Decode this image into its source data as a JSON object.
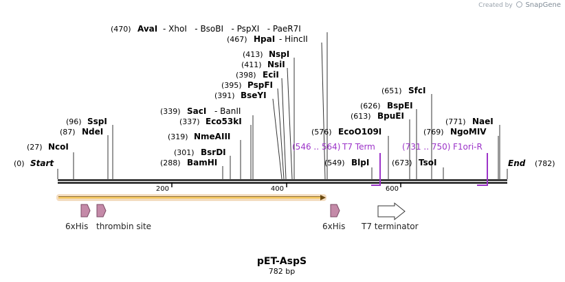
{
  "credit": {
    "prefix": "Created by",
    "brand": "SnapGene"
  },
  "map": {
    "name": "pET-AspS",
    "length_label": "782 bp",
    "length_bp": 782,
    "ticks": [
      "200",
      "400",
      "600"
    ],
    "ends": {
      "start": {
        "pos": "(0)",
        "label": "Start"
      },
      "end": {
        "pos": "(782)",
        "label": "End"
      }
    }
  },
  "sites": [
    {
      "pos": "(27)",
      "name": "NcoI"
    },
    {
      "pos": "(87)",
      "name": "NdeI"
    },
    {
      "pos": "(96)",
      "name": "SspI"
    },
    {
      "pos": "(288)",
      "name": "BamHI"
    },
    {
      "pos": "(301)",
      "name": "BsrDI"
    },
    {
      "pos": "(319)",
      "name": "NmeAIII"
    },
    {
      "pos": "(337)",
      "name": "Eco53kI"
    },
    {
      "pos": "(339)",
      "name": "SacI",
      "extra": "- BanII"
    },
    {
      "pos": "(391)",
      "name": "BseYI"
    },
    {
      "pos": "(395)",
      "name": "PspFI"
    },
    {
      "pos": "(398)",
      "name": "EciI"
    },
    {
      "pos": "(411)",
      "name": "NsiI"
    },
    {
      "pos": "(413)",
      "name": "NspI"
    },
    {
      "pos": "(467)",
      "name": "HpaI",
      "extra": "- HincII"
    },
    {
      "pos": "(470)",
      "name": "AvaI",
      "extra": "- XhoI   - BsoBI   - PspXI   - PaeR7I"
    },
    {
      "pos": "(549)",
      "name": "BlpI"
    },
    {
      "pos": "(576)",
      "name": "EcoO109I"
    },
    {
      "pos": "(613)",
      "name": "BpuEI"
    },
    {
      "pos": "(626)",
      "name": "BspEI"
    },
    {
      "pos": "(651)",
      "name": "SfcI"
    },
    {
      "pos": "(673)",
      "name": "TsoI"
    },
    {
      "pos": "(769)",
      "name": "NgoMIV"
    },
    {
      "pos": "(771)",
      "name": "NaeI"
    }
  ],
  "primers": [
    {
      "range": "(546 .. 564)",
      "name": "T7 Term"
    },
    {
      "range": "(731 .. 750)",
      "name": "F1ori-R"
    }
  ],
  "features": [
    {
      "label": "6xHis"
    },
    {
      "label": "thrombin site"
    },
    {
      "label": "6xHis"
    },
    {
      "label": "T7 terminator"
    }
  ],
  "colors": {
    "backbone": "#1a1a1a",
    "orf_fill": "#f5c860",
    "orf_glow": "#f3dcc0",
    "feature_fill": "#c48aa8",
    "feature_stroke": "#7a4a64",
    "primer": "#9b32c8",
    "terminator_fill": "#ffffff"
  }
}
